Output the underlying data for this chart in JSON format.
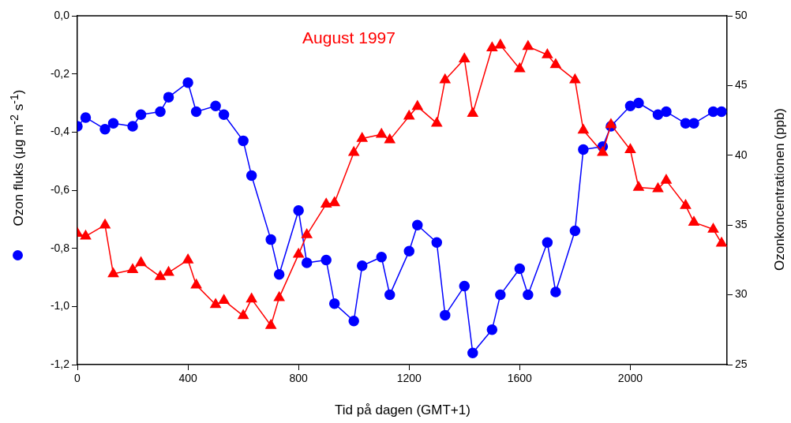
{
  "chart_data": {
    "type": "line",
    "annotations": [
      "August 1997"
    ],
    "xlabel": "Tid på dagen (GMT+1)",
    "ylabel": "Ozon fluks (μg m$^{-2}$ s$^{-1}$)",
    "y2label": "Ozonkoncentrationen (ppb)",
    "x": [
      0,
      30,
      100,
      130,
      200,
      230,
      300,
      330,
      400,
      430,
      500,
      530,
      600,
      630,
      700,
      730,
      800,
      830,
      900,
      930,
      1000,
      1030,
      1100,
      1130,
      1200,
      1230,
      1300,
      1330,
      1400,
      1430,
      1500,
      1530,
      1600,
      1630,
      1700,
      1730,
      1800,
      1830,
      1900,
      1930,
      2000,
      2030,
      2100,
      2130,
      2200,
      2230,
      2300,
      2330
    ],
    "series": [
      {
        "color": "#0000ff",
        "marker": "circle",
        "values": [
          -0.38,
          -0.35,
          -0.39,
          -0.37,
          -0.38,
          -0.34,
          -0.33,
          -0.28,
          -0.23,
          -0.33,
          -0.31,
          -0.34,
          -0.43,
          -0.55,
          -0.77,
          -0.89,
          -0.67,
          -0.85,
          -0.84,
          -0.99,
          -1.05,
          -0.86,
          -0.83,
          -0.96,
          -0.81,
          -0.72,
          -0.78,
          -1.03,
          -0.93,
          -1.16,
          -1.08,
          -0.96,
          -0.87,
          -0.96,
          -0.78,
          -0.95,
          -0.74,
          -0.46,
          -0.45,
          -0.38,
          -0.31,
          -0.3,
          -0.34,
          -0.33,
          -0.37,
          -0.37,
          -0.33,
          -0.33
        ]
      },
      {
        "color": "#ff0000",
        "marker": "triangle",
        "axis": "y2",
        "values": [
          34.4,
          34.2,
          35.0,
          31.5,
          31.8,
          32.3,
          31.3,
          31.6,
          32.5,
          30.7,
          29.3,
          29.6,
          28.5,
          29.7,
          27.8,
          29.8,
          32.9,
          34.3,
          36.5,
          36.6,
          40.2,
          41.2,
          41.5,
          41.1,
          42.8,
          43.5,
          42.3,
          45.4,
          46.9,
          43.0,
          47.7,
          47.9,
          46.2,
          47.8,
          47.2,
          46.5,
          45.4,
          41.8,
          40.2,
          42.2,
          40.4,
          37.7,
          37.6,
          38.2,
          36.4,
          35.2,
          34.7,
          33.7
        ]
      }
    ],
    "xlim": [
      0,
      2350
    ],
    "xticks": [
      0,
      400,
      800,
      1200,
      1600,
      2000
    ],
    "ylim": [
      -1.2,
      0
    ],
    "yticks": [
      {
        "value": -1.2,
        "label": "-1,2"
      },
      {
        "value": -1,
        "label": "-1,0"
      },
      {
        "value": -0.8,
        "label": "-0,8"
      },
      {
        "value": -0.6,
        "label": "-0,6"
      },
      {
        "value": -0.4,
        "label": "-0,4"
      },
      {
        "value": -0.2,
        "label": "-0,2"
      },
      {
        "value": 0,
        "label": "0,0"
      }
    ],
    "y2lim": [
      25,
      50
    ],
    "y2ticks": [
      25,
      30,
      35,
      40,
      45,
      50
    ],
    "grid": false,
    "legend": false,
    "line_style": "solid"
  }
}
